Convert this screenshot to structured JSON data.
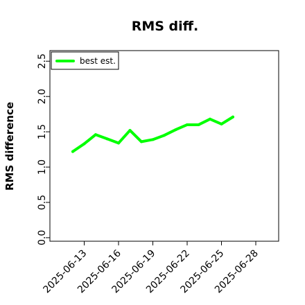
{
  "chart_data": {
    "type": "line",
    "title": "RMS diff.",
    "xlabel": "",
    "ylabel": "RMS difference",
    "x": [
      "2025-06-12",
      "2025-06-13",
      "2025-06-14",
      "2025-06-15",
      "2025-06-16",
      "2025-06-17",
      "2025-06-18",
      "2025-06-19",
      "2025-06-20",
      "2025-06-21",
      "2025-06-22",
      "2025-06-23",
      "2025-06-24",
      "2025-06-25",
      "2025-06-26"
    ],
    "series": [
      {
        "name": "best est.",
        "values": [
          1.22,
          1.33,
          1.46,
          1.4,
          1.34,
          1.52,
          1.36,
          1.39,
          1.45,
          1.53,
          1.6,
          1.6,
          1.68,
          1.61,
          1.71
        ],
        "color": "#00ff00"
      }
    ],
    "xticks": [
      "2025-06-13",
      "2025-06-16",
      "2025-06-19",
      "2025-06-22",
      "2025-06-25",
      "2025-06-28"
    ],
    "yticks": [
      "0.0",
      "0.5",
      "1.0",
      "1.5",
      "2.0",
      "2.5"
    ],
    "xlim": [
      "2025-06-10",
      "2025-06-30"
    ],
    "ylim": [
      -0.05,
      2.65
    ],
    "grid": false,
    "legend": "top-left"
  }
}
